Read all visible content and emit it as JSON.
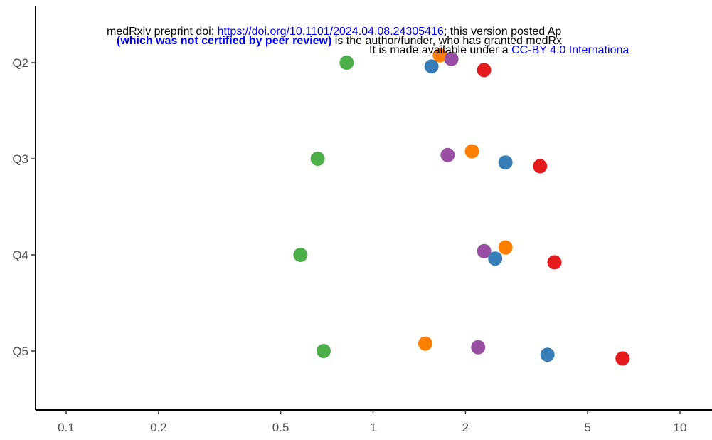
{
  "chart_data": {
    "type": "scatter",
    "title": "",
    "xlabel": "",
    "ylabel": "",
    "x_scale": "log",
    "xlim": [
      0.08,
      12
    ],
    "x_ticks": [
      0.1,
      0.2,
      0.5,
      1,
      2,
      5,
      10
    ],
    "x_tick_labels": [
      "0.1",
      "0.2",
      "0.5",
      "1",
      "2",
      "5",
      "10"
    ],
    "categories": [
      "Q2",
      "Q3",
      "Q4",
      "Q5"
    ],
    "grid": false,
    "series": [
      {
        "color": "#4daf4a",
        "offset": 0.0,
        "values": [
          0.82,
          0.66,
          0.58,
          0.69
        ]
      },
      {
        "color": "#ff7f00",
        "offset": 0.16,
        "values": [
          1.65,
          2.1,
          2.7,
          1.48
        ]
      },
      {
        "color": "#984ea3",
        "offset": 0.08,
        "values": [
          1.8,
          1.75,
          2.3,
          2.2
        ]
      },
      {
        "color": "#377eb8",
        "offset": -0.08,
        "values": [
          1.55,
          2.7,
          2.5,
          3.7
        ]
      },
      {
        "color": "#e41a1c",
        "offset": -0.16,
        "values": [
          2.3,
          3.5,
          3.9,
          6.5
        ]
      }
    ]
  },
  "notice": {
    "line1_prefix": "medRxiv preprint doi: ",
    "doi_link": "https://doi.org/10.1101/2024.04.08.24305416",
    "line1_suffix": "; this version posted Ap",
    "line2_bold": "(which was not certified by peer review)",
    "line2_suffix": " is the author/funder, who has granted medRx",
    "line3_prefix": "It is made available under a ",
    "license_link": "CC-BY 4.0 Internationa"
  }
}
